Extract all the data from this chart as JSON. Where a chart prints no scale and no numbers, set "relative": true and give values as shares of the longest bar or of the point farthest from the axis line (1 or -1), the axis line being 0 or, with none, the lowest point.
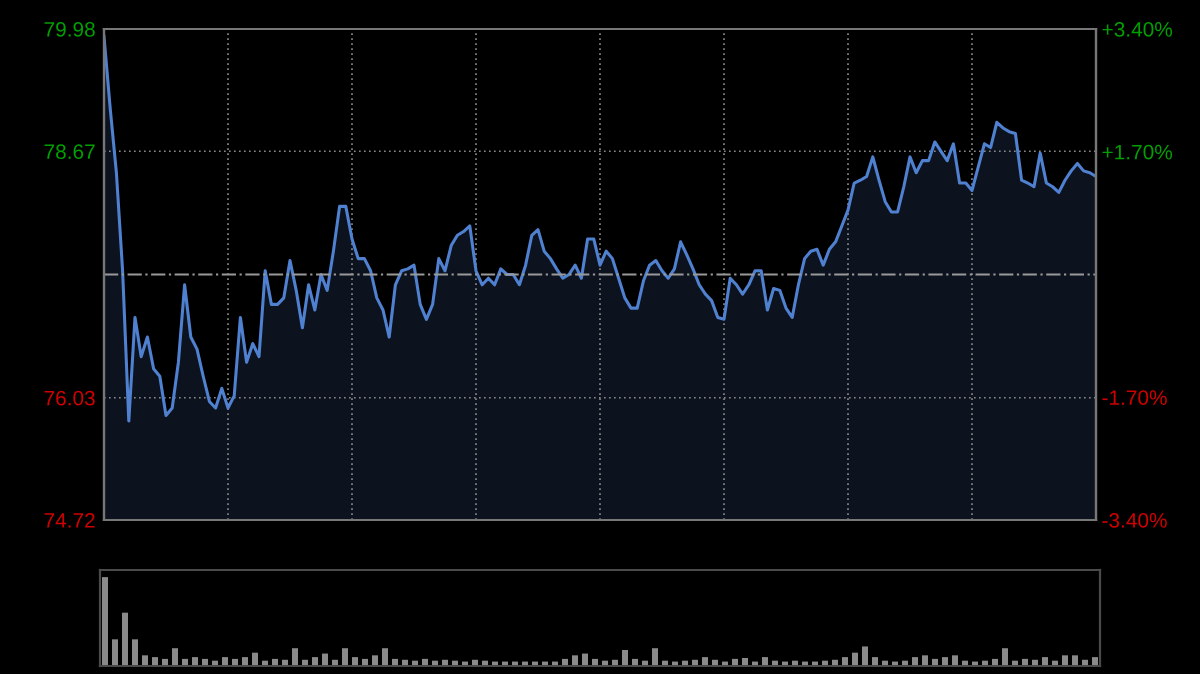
{
  "chart_data": [
    {
      "type": "area",
      "categories": [
        null,
        null,
        null,
        null,
        null,
        null,
        null,
        null,
        null,
        null,
        null,
        null,
        null,
        null,
        null,
        null,
        null,
        null,
        null,
        null,
        null,
        null,
        null,
        null,
        null,
        null,
        null,
        null,
        null,
        null,
        null,
        null,
        null,
        null,
        null,
        null,
        null,
        null,
        null,
        null,
        null,
        null,
        null,
        null,
        null,
        null,
        null,
        null,
        null,
        null,
        null,
        null,
        null,
        null,
        null,
        null,
        null,
        null,
        null,
        null,
        null,
        null,
        null,
        null,
        null,
        null,
        null,
        null,
        null,
        null,
        null,
        null,
        null,
        null,
        null,
        null,
        null,
        null,
        null,
        null,
        null,
        null,
        null,
        null,
        null,
        null,
        null,
        null,
        null,
        null,
        null,
        null,
        null,
        null,
        null,
        null,
        null,
        null,
        null,
        null,
        null,
        null,
        null,
        null,
        null,
        null,
        null,
        null,
        null,
        null,
        null,
        null,
        null,
        null,
        null,
        null,
        null,
        null,
        null,
        null,
        null,
        null,
        null,
        null,
        null,
        null,
        null,
        null,
        null,
        null,
        null,
        null,
        null,
        null,
        null,
        null,
        null,
        null,
        null,
        null,
        null,
        null,
        null,
        null,
        null,
        null,
        null,
        null,
        null,
        null,
        null,
        null,
        null,
        null,
        null,
        null,
        null,
        null,
        null,
        null,
        null
      ],
      "color": "#4f81d0",
      "values": [
        79.9,
        79.13,
        78.44,
        77.39,
        75.78,
        76.89,
        76.47,
        76.68,
        76.34,
        76.26,
        75.84,
        75.92,
        76.41,
        77.24,
        76.68,
        76.55,
        76.26,
        75.99,
        75.92,
        76.13,
        75.92,
        76.05,
        76.89,
        76.41,
        76.61,
        76.47,
        77.39,
        77.03,
        77.03,
        77.1,
        77.5,
        77.18,
        76.78,
        77.24,
        76.97,
        77.35,
        77.18,
        77.6,
        78.08,
        78.08,
        77.73,
        77.52,
        77.52,
        77.39,
        77.1,
        76.97,
        76.68,
        77.24,
        77.39,
        77.41,
        77.45,
        77.03,
        76.87,
        77.03,
        77.52,
        77.39,
        77.66,
        77.77,
        77.81,
        77.87,
        77.39,
        77.24,
        77.31,
        77.24,
        77.41,
        77.35,
        77.35,
        77.24,
        77.45,
        77.77,
        77.83,
        77.6,
        77.52,
        77.41,
        77.31,
        77.35,
        77.45,
        77.31,
        77.73,
        77.73,
        77.45,
        77.6,
        77.52,
        77.31,
        77.1,
        76.99,
        76.99,
        77.28,
        77.45,
        77.5,
        77.39,
        77.31,
        77.41,
        77.7,
        77.56,
        77.41,
        77.24,
        77.14,
        77.07,
        76.89,
        76.87,
        77.31,
        77.24,
        77.14,
        77.24,
        77.39,
        77.39,
        76.97,
        77.2,
        77.18,
        76.99,
        76.89,
        77.24,
        77.52,
        77.6,
        77.62,
        77.45,
        77.62,
        77.7,
        77.87,
        78.04,
        78.33,
        78.36,
        78.4,
        78.61,
        78.36,
        78.13,
        78.02,
        78.02,
        78.29,
        78.61,
        78.44,
        78.57,
        78.57,
        78.77,
        78.67,
        78.57,
        78.75,
        78.33,
        78.33,
        78.25,
        78.5,
        78.75,
        78.71,
        78.98,
        78.92,
        78.88,
        78.86,
        78.36,
        78.33,
        78.29,
        78.65,
        78.33,
        78.29,
        78.23,
        78.36,
        78.46,
        78.54,
        78.46,
        78.44,
        78.4
      ],
      "ylim": [
        74.72,
        79.98
      ],
      "yticks": [
        74.72,
        76.03,
        78.67,
        79.98
      ],
      "y2lim": [
        -3.4,
        3.4
      ],
      "y2ticks": [
        {
          "value": -3.4,
          "label": "-3.40%"
        },
        {
          "value": -1.7,
          "label": "-1.70%"
        },
        {
          "value": 1.7,
          "label": "+1.70%"
        },
        {
          "value": 3.4,
          "label": "+3.40%"
        }
      ],
      "ref_lines": [
        {
          "axis": "y",
          "value": 77.35,
          "color": "#999999",
          "line_style": "dashdot"
        }
      ],
      "grid": true,
      "tick_labels": "y"
    },
    {
      "type": "bar",
      "relative": true,
      "categories": [
        null,
        null,
        null,
        null,
        null,
        null,
        null,
        null,
        null,
        null,
        null,
        null,
        null,
        null,
        null,
        null,
        null,
        null,
        null,
        null,
        null,
        null,
        null,
        null,
        null,
        null,
        null,
        null,
        null,
        null,
        null,
        null,
        null,
        null,
        null,
        null,
        null,
        null,
        null,
        null,
        null,
        null,
        null,
        null,
        null,
        null,
        null,
        null,
        null,
        null,
        null,
        null,
        null,
        null,
        null,
        null,
        null,
        null,
        null,
        null,
        null,
        null,
        null,
        null,
        null,
        null,
        null,
        null,
        null,
        null,
        null,
        null,
        null,
        null,
        null,
        null,
        null,
        null,
        null,
        null,
        null,
        null,
        null,
        null,
        null,
        null,
        null,
        null,
        null,
        null,
        null,
        null,
        null,
        null,
        null,
        null,
        null,
        null,
        null,
        null
      ],
      "color": "#8a8a8a",
      "values": [
        1.0,
        0.3,
        0.6,
        0.3,
        0.12,
        0.1,
        0.08,
        0.2,
        0.08,
        0.1,
        0.08,
        0.06,
        0.1,
        0.08,
        0.1,
        0.15,
        0.06,
        0.08,
        0.07,
        0.2,
        0.07,
        0.1,
        0.14,
        0.07,
        0.2,
        0.1,
        0.08,
        0.12,
        0.2,
        0.08,
        0.07,
        0.06,
        0.08,
        0.06,
        0.07,
        0.06,
        0.05,
        0.07,
        0.06,
        0.05,
        0.05,
        0.05,
        0.05,
        0.05,
        0.05,
        0.05,
        0.08,
        0.12,
        0.14,
        0.08,
        0.06,
        0.07,
        0.18,
        0.08,
        0.06,
        0.2,
        0.06,
        0.05,
        0.06,
        0.07,
        0.1,
        0.07,
        0.05,
        0.08,
        0.09,
        0.05,
        0.1,
        0.06,
        0.05,
        0.06,
        0.05,
        0.05,
        0.06,
        0.07,
        0.1,
        0.15,
        0.22,
        0.1,
        0.06,
        0.05,
        0.06,
        0.1,
        0.12,
        0.08,
        0.1,
        0.12,
        0.06,
        0.05,
        0.06,
        0.08,
        0.2,
        0.06,
        0.08,
        0.07,
        0.1,
        0.06,
        0.12,
        0.12,
        0.07,
        0.1
      ]
    }
  ]
}
